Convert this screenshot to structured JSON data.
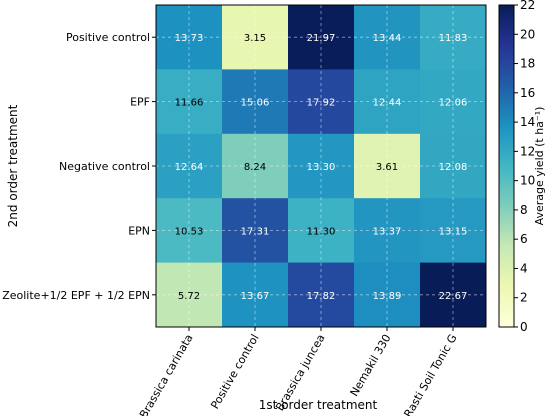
{
  "chart_data": {
    "type": "heatmap",
    "title": "",
    "xlabel": "1st order treatment",
    "ylabel": "2nd order treatment",
    "x_categories": [
      "Brassica carinata",
      "Positive control",
      "Brassica juncea",
      "Nemakil 330",
      "Rasti Soil Tonic G"
    ],
    "y_categories": [
      "Positive control",
      "EPF",
      "Negative control",
      "EPN",
      "Zeolite+1/2 EPF + 1/2 EPN"
    ],
    "values": [
      [
        13.73,
        3.15,
        21.97,
        13.44,
        11.83
      ],
      [
        11.66,
        15.06,
        17.92,
        12.44,
        12.06
      ],
      [
        12.64,
        8.24,
        13.3,
        3.61,
        12.08
      ],
      [
        10.53,
        17.31,
        11.3,
        13.37,
        13.15
      ],
      [
        5.72,
        13.67,
        17.82,
        13.89,
        22.67
      ]
    ],
    "value_labels": [
      [
        "13.73",
        "3.15",
        "21.97",
        "13.44",
        "11.83"
      ],
      [
        "11.66",
        "15.06",
        "17.92",
        "12.44",
        "12.06"
      ],
      [
        "12.64",
        "8.24",
        "13.30",
        "3.61",
        "12.08"
      ],
      [
        "10.53",
        "17.31",
        "11.30",
        "13.37",
        "13.15"
      ],
      [
        "5.72",
        "13.67",
        "17.82",
        "13.89",
        "22.67"
      ]
    ],
    "colorbar": {
      "label": "Average yield (t ha⁻¹)",
      "range": [
        0,
        22
      ],
      "ticks": [
        0,
        2,
        4,
        6,
        8,
        10,
        12,
        14,
        16,
        18,
        20,
        22
      ],
      "colormap": "YlGnBu",
      "colors": [
        "#ffffd9",
        "#edf8b1",
        "#c7e9b4",
        "#7fcdbb",
        "#41b6c4",
        "#1d91c0",
        "#225ea8",
        "#253494",
        "#081d58"
      ]
    },
    "grid": true
  }
}
